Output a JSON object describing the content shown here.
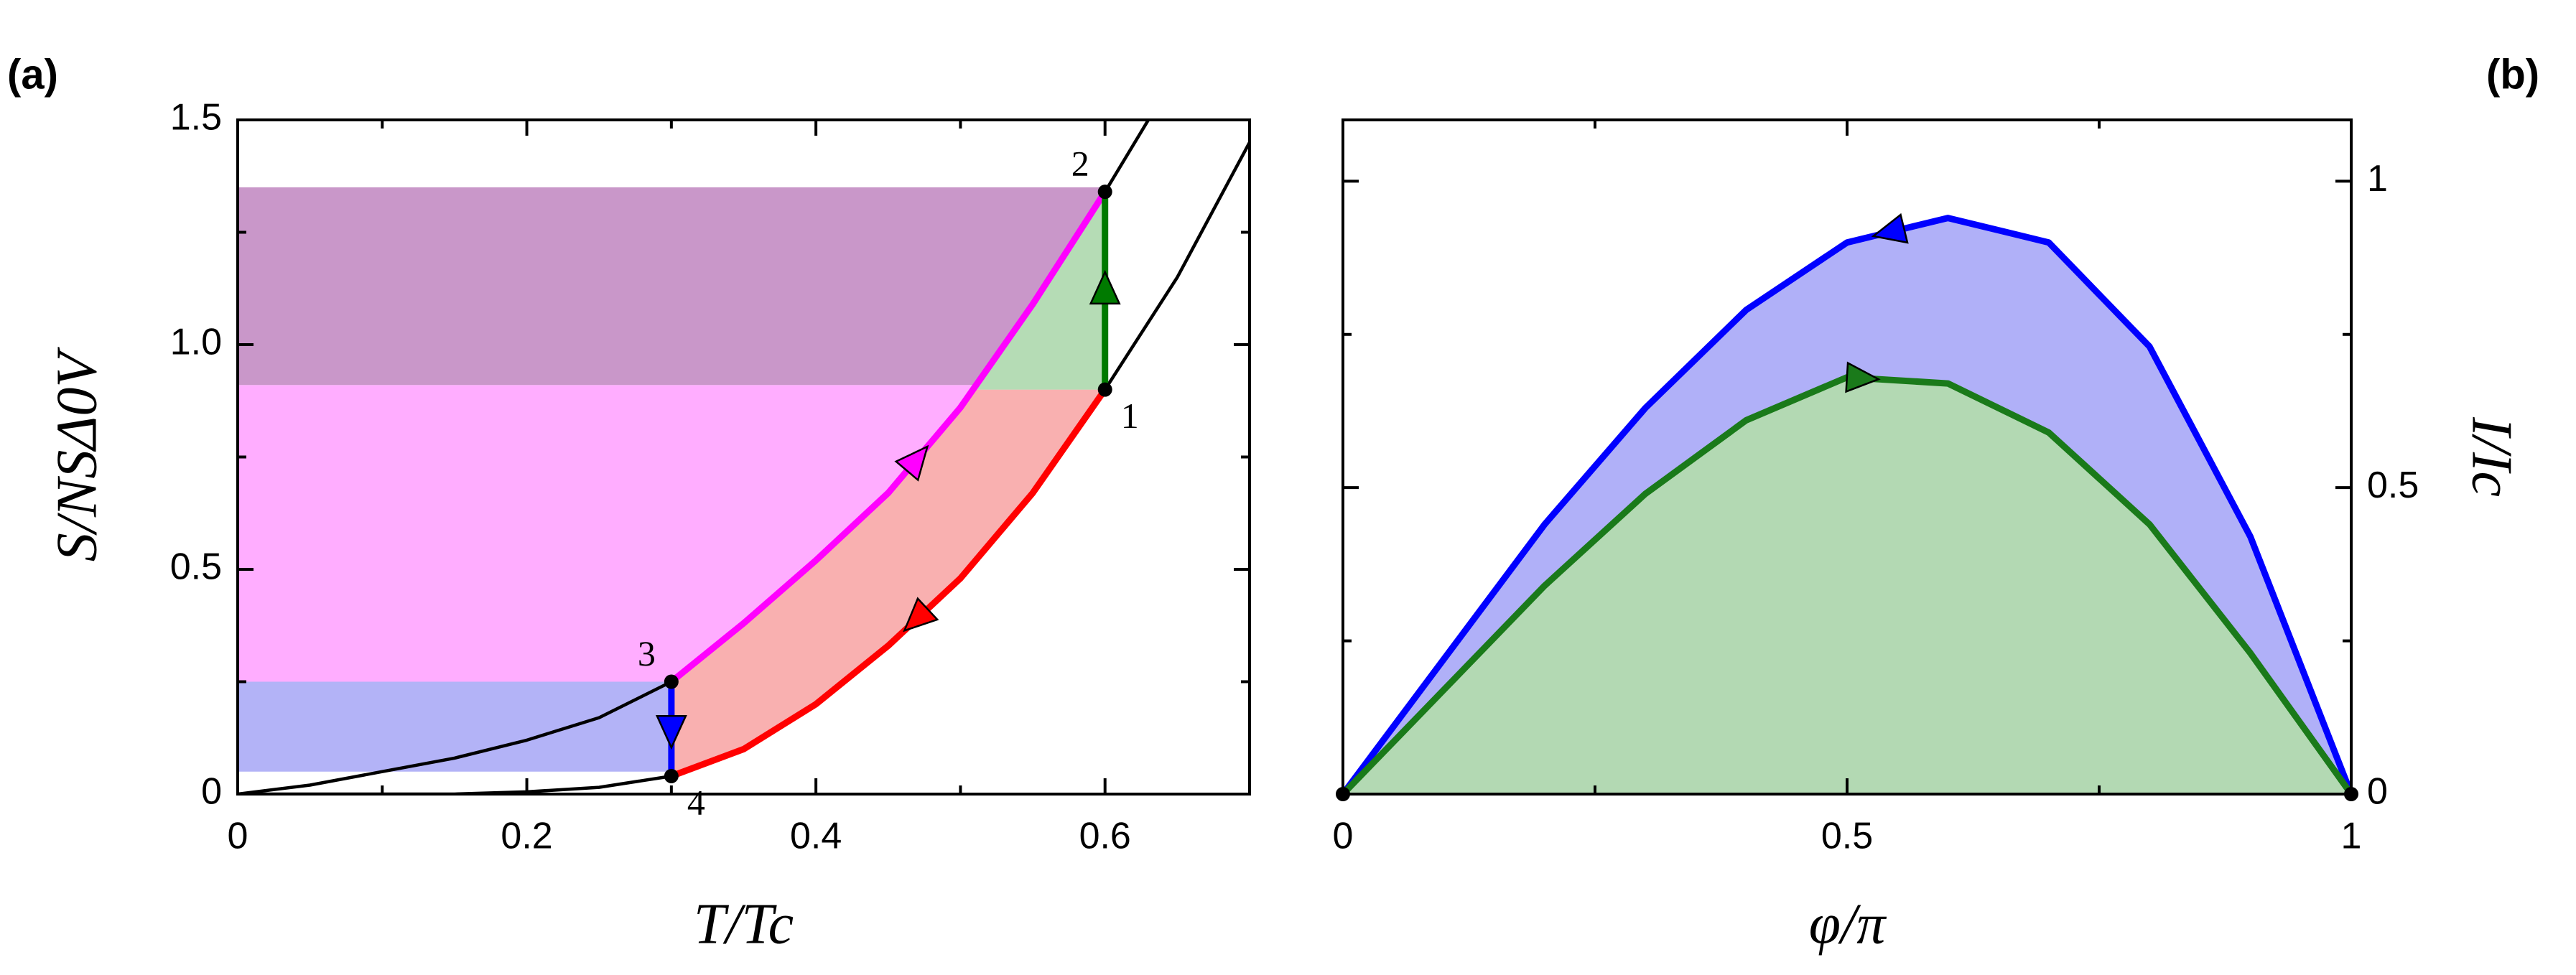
{
  "chart_data": [
    {
      "type": "line",
      "panel_label": "(a)",
      "xlabel": "T/Tc",
      "ylabel": "S/NSΔ0V",
      "xlim": [
        0,
        0.7
      ],
      "ylim": [
        0,
        1.5
      ],
      "xticks": [
        0,
        0.2,
        0.4,
        0.6
      ],
      "yticks": [
        0,
        0.5,
        {
          "value": 1,
          "label": "1.0"
        },
        1.5
      ],
      "minor_xticks": [
        0.1,
        0.3,
        0.5
      ],
      "minor_yticks": [
        0.25,
        0.75,
        1.25
      ],
      "y_axis_side": "left",
      "regions": [
        {
          "color": "#ffadff",
          "ylim": [
            0.25,
            0.91
          ]
        },
        {
          "color": "#c997c9",
          "ylim": [
            0.91,
            1.35
          ]
        },
        {
          "color": "#b3b3f7",
          "ylim": [
            0.05,
            0.25
          ]
        }
      ],
      "fills": [
        "#f9b0b0",
        "#b5dcb5"
      ],
      "series": [
        {
          "color": "#000000",
          "x": [
            0,
            0.05,
            0.1,
            0.15,
            0.2,
            0.25,
            0.3
          ],
          "values": [
            0,
            0.02,
            0.05,
            0.08,
            0.12,
            0.17,
            0.25
          ]
        },
        {
          "color": "#ff00ff",
          "x": [
            0.3,
            0.35,
            0.4,
            0.45,
            0.5,
            0.55,
            0.6
          ],
          "values": [
            0.25,
            0.38,
            0.52,
            0.67,
            0.86,
            1.09,
            1.34
          ],
          "arrow": "forward"
        },
        {
          "color": "#000000",
          "x": [
            0.6,
            0.63
          ],
          "values": [
            1.34,
            1.5
          ]
        },
        {
          "color": "#000000",
          "x": [
            0,
            0.15,
            0.2,
            0.25,
            0.3
          ],
          "values": [
            0,
            0,
            0.005,
            0.015,
            0.04
          ]
        },
        {
          "color": "#ff0000",
          "x": [
            0.3,
            0.35,
            0.4,
            0.45,
            0.5,
            0.55,
            0.6
          ],
          "values": [
            0.04,
            0.1,
            0.2,
            0.33,
            0.48,
            0.67,
            0.9
          ],
          "arrow": "backward"
        },
        {
          "color": "#000000",
          "x": [
            0.6,
            0.65,
            0.7
          ],
          "values": [
            0.9,
            1.15,
            1.45
          ]
        },
        {
          "color": "#007a00",
          "x": [
            0.6,
            0.6
          ],
          "values": [
            0.9,
            1.34
          ],
          "arrow": "forward"
        },
        {
          "color": "#0000ff",
          "x": [
            0.3,
            0.3
          ],
          "values": [
            0.25,
            0.04
          ],
          "arrow": "forward"
        }
      ],
      "points": [
        {
          "label": "1",
          "x": 0.6,
          "y": 0.9,
          "label_pos": "se"
        },
        {
          "label": "2",
          "x": 0.6,
          "y": 1.34,
          "label_pos": "nw"
        },
        {
          "label": "3",
          "x": 0.3,
          "y": 0.25,
          "label_pos": "nw"
        },
        {
          "label": "4",
          "x": 0.3,
          "y": 0.04,
          "label_pos": "se"
        }
      ]
    },
    {
      "type": "line",
      "panel_label": "(b)",
      "xlabel": "φ/π",
      "ylabel": "I/Ic",
      "xlim": [
        0,
        1
      ],
      "ylim": [
        0,
        1.1
      ],
      "xticks": [
        0,
        0.5,
        1
      ],
      "yticks": [
        0,
        0.5,
        1
      ],
      "minor_xticks": [
        0.25,
        0.75
      ],
      "minor_yticks": [
        0.25,
        0.75
      ],
      "y_axis_side": "right",
      "x": [
        0,
        0.1,
        0.2,
        0.3,
        0.4,
        0.5,
        0.6,
        0.7,
        0.8,
        0.9,
        1
      ],
      "series": [
        {
          "color": "#0000ff",
          "fill": "#b0b0f8",
          "values": [
            0,
            0.22,
            0.44,
            0.63,
            0.79,
            0.9,
            0.94,
            0.9,
            0.73,
            0.42,
            0
          ],
          "arrow": "backward"
        },
        {
          "color": "#1a7a1a",
          "fill": "#b3d9b3",
          "values": [
            0,
            0.17,
            0.34,
            0.49,
            0.61,
            0.68,
            0.67,
            0.59,
            0.44,
            0.23,
            0
          ],
          "arrow": "forward"
        }
      ],
      "points": [
        {
          "x": 0,
          "y": 0
        },
        {
          "x": 1,
          "y": 0
        }
      ]
    }
  ]
}
